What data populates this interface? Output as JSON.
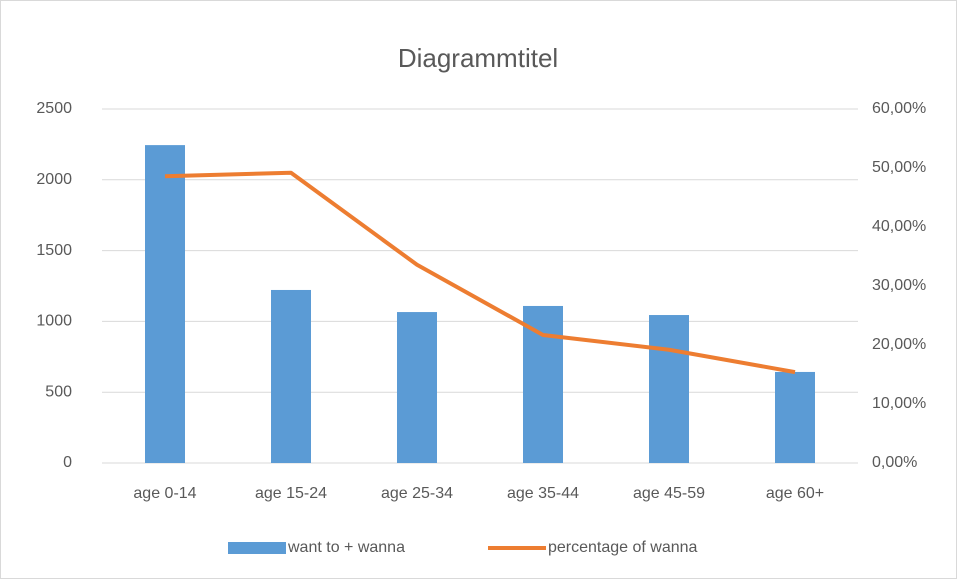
{
  "chart_data": {
    "type": "bar-line",
    "title": "Diagrammtitel",
    "categories": [
      "age 0-14",
      "age 15-24",
      "age 25-34",
      "age 35-44",
      "age 45-59",
      "age 60+"
    ],
    "series": [
      {
        "name": "want to + wanna",
        "type": "bar",
        "color": "#5b9bd5",
        "values": [
          2245,
          1222,
          1066,
          1109,
          1045,
          643
        ]
      },
      {
        "name": "percentage of wanna",
        "type": "line",
        "axis": "y2",
        "color": "#ed7d31",
        "values": [
          48.6,
          49.2,
          33.6,
          21.7,
          19.2,
          15.4
        ]
      }
    ],
    "ylim": [
      0,
      2500
    ],
    "yticks": [
      0,
      500,
      1000,
      1500,
      2000,
      2500
    ],
    "y2lim": [
      0,
      60
    ],
    "y2ticks": [
      {
        "value": 0,
        "label": "0,00%"
      },
      {
        "value": 10,
        "label": "10,00%"
      },
      {
        "value": 20,
        "label": "20,00%"
      },
      {
        "value": 30,
        "label": "30,00%"
      },
      {
        "value": 40,
        "label": "40,00%"
      },
      {
        "value": 50,
        "label": "50,00%"
      },
      {
        "value": 60,
        "label": "60,00%"
      }
    ],
    "grid": true,
    "legend": "bottom"
  }
}
